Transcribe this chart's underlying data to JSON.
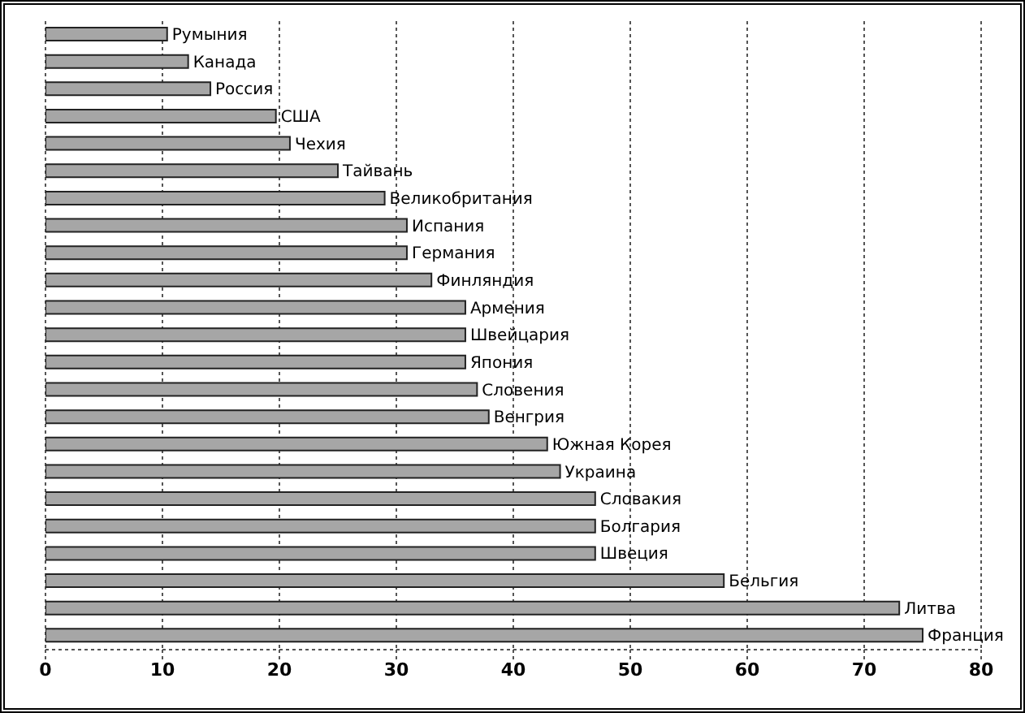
{
  "chart_data": {
    "type": "bar",
    "orientation": "horizontal",
    "tick_labels": "x",
    "grid": "x",
    "color": "#a6a6a6",
    "categories": [
      "Румыния",
      "Канада",
      "Россия",
      "США",
      "Чехия",
      "Тайвань",
      "Великобритания",
      "Испания",
      "Германия",
      "Финляндия",
      "Армения",
      "Швейцария",
      "Япония",
      "Словения",
      "Венгрия",
      "Южная Корея",
      "Украина",
      "Словакия",
      "Болгария",
      "Швеция",
      "Бельгия",
      "Литва",
      "Франция"
    ],
    "values": [
      10.4,
      12.2,
      14.1,
      19.7,
      20.9,
      25,
      29,
      30.9,
      30.9,
      33,
      35.9,
      35.9,
      35.9,
      36.9,
      37.9,
      42.9,
      44,
      47,
      47,
      47,
      58,
      73,
      75
    ],
    "xlim": [
      0,
      80
    ],
    "xticks": [
      0,
      10,
      20,
      30,
      40,
      50,
      60,
      70,
      80
    ]
  }
}
